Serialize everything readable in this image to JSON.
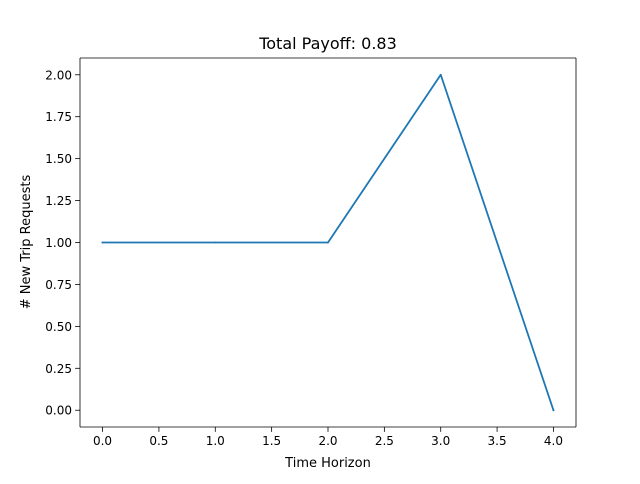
{
  "chart_data": {
    "type": "line",
    "title": "Total Payoff: 0.83",
    "xlabel": "Time Horizon",
    "ylabel": "# New Trip Requests",
    "x": [
      0,
      1,
      2,
      3,
      4
    ],
    "series": [
      {
        "values": [
          1,
          1,
          1,
          2,
          0
        ],
        "color": "#1f77b4"
      }
    ],
    "xlim": [
      -0.2,
      4.2
    ],
    "ylim": [
      -0.1,
      2.1
    ],
    "xticks": [
      0,
      0.5,
      1,
      1.5,
      2,
      2.5,
      3,
      3.5,
      4
    ],
    "xtick_labels": [
      "0.0",
      "0.5",
      "1.0",
      "1.5",
      "2.0",
      "2.5",
      "3.0",
      "3.5",
      "4.0"
    ],
    "yticks": [
      0,
      0.25,
      0.5,
      0.75,
      1,
      1.25,
      1.5,
      1.75,
      2
    ],
    "ytick_labels": [
      "0.00",
      "0.25",
      "0.50",
      "0.75",
      "1.00",
      "1.25",
      "1.50",
      "1.75",
      "2.00"
    ],
    "grid": false,
    "legend": false
  }
}
